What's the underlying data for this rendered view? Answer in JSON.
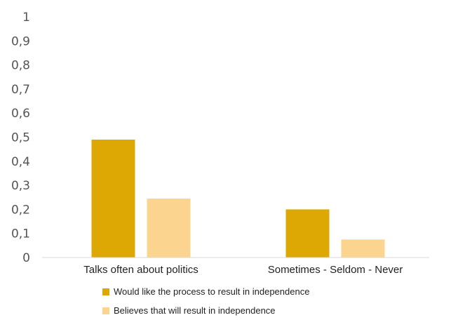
{
  "chart_data": {
    "type": "bar",
    "categories": [
      "Talks often about politics",
      "Sometimes - Seldom - Never"
    ],
    "series": [
      {
        "name": "Would like the process to result in independence",
        "values": [
          0.49,
          0.2
        ],
        "color": "#dda704"
      },
      {
        "name": "Believes that will result in independence",
        "values": [
          0.245,
          0.075
        ],
        "color": "#fbd48f"
      }
    ],
    "y_ticks": [
      "0",
      "0,1",
      "0,2",
      "0,3",
      "0,4",
      "0,5",
      "0,6",
      "0,7",
      "0,8",
      "0,9",
      "1"
    ],
    "ylim": [
      0,
      1
    ],
    "grid": false,
    "legend_position": "bottom"
  },
  "colors": {
    "axis": "#d9d9d9",
    "tick_text": "#555555"
  }
}
